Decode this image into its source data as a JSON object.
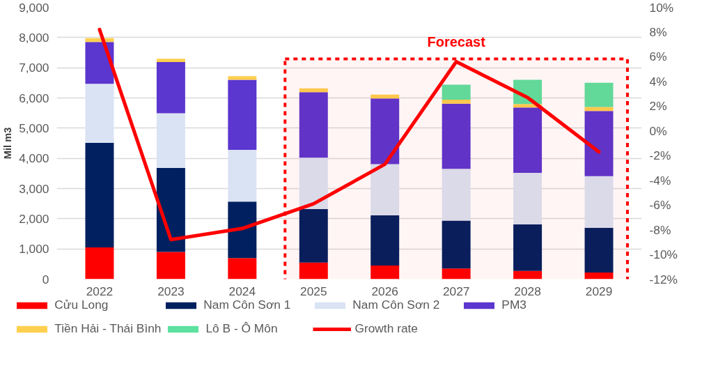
{
  "chart_data": {
    "type": "bar",
    "stacked": true,
    "ylabel": "Mil m3",
    "categories": [
      "2022",
      "2023",
      "2024",
      "2025",
      "2026",
      "2027",
      "2028",
      "2029"
    ],
    "series": [
      {
        "name": "Cửu Long",
        "color": "#ff0000",
        "values": [
          1050,
          900,
          700,
          550,
          450,
          350,
          270,
          220
        ]
      },
      {
        "name": "Nam Côn Sơn 1",
        "color": "#002060",
        "values": [
          3460,
          2780,
          1870,
          1770,
          1660,
          1590,
          1540,
          1480
        ]
      },
      {
        "name": "Nam Côn Sơn 2",
        "color": "#dae3f3",
        "values": [
          1960,
          1810,
          1710,
          1700,
          1700,
          1710,
          1710,
          1710
        ]
      },
      {
        "name": "PM3",
        "color": "#5b36cf",
        "values": [
          1380,
          1700,
          2320,
          2170,
          2170,
          2160,
          2160,
          2160
        ]
      },
      {
        "name": "Tiền Hải - Thái Bình",
        "color": "#ffd04f",
        "values": [
          130,
          110,
          120,
          130,
          130,
          130,
          120,
          130
        ]
      },
      {
        "name": "Lô B - Ô Môn",
        "color": "#5ce1a0",
        "values": [
          null,
          null,
          null,
          null,
          null,
          500,
          800,
          800
        ]
      },
      {
        "name": "Growth rate",
        "type": "line",
        "axis": "y2",
        "color": "#ff0000",
        "values": [
          8.2,
          -8.8,
          -7.9,
          -5.9,
          -2.7,
          5.6,
          2.7,
          -1.7
        ]
      }
    ],
    "ylim": [
      0,
      9000
    ],
    "yticks": [
      0,
      {
        "value": 1000,
        "label": "1,000"
      },
      {
        "value": 2000,
        "label": "2,000"
      },
      {
        "value": 3000,
        "label": "3,000"
      },
      {
        "value": 4000,
        "label": "4,000"
      },
      {
        "value": 5000,
        "label": "5,000"
      },
      {
        "value": 6000,
        "label": "6,000"
      },
      {
        "value": 7000,
        "label": "7,000"
      },
      {
        "value": 8000,
        "label": "8,000"
      },
      {
        "value": 9000,
        "label": "9,000"
      }
    ],
    "y2lim": [
      -12,
      10
    ],
    "y2ticks": [
      {
        "value": -12,
        "label": "-12%"
      },
      {
        "value": -10,
        "label": "-10%"
      },
      {
        "value": -8,
        "label": "-8%"
      },
      {
        "value": -6,
        "label": "-6%"
      },
      {
        "value": -4,
        "label": "-4%"
      },
      {
        "value": -2,
        "label": "-2%"
      },
      {
        "value": 0,
        "label": "0%"
      },
      {
        "value": 2,
        "label": "2%"
      },
      {
        "value": 4,
        "label": "4%"
      },
      {
        "value": 6,
        "label": "6%"
      },
      {
        "value": 8,
        "label": "8%"
      },
      {
        "value": 10,
        "label": "10%"
      }
    ],
    "bands": [
      {
        "axis": "x",
        "from": "2025",
        "to": "2029",
        "label": "Forecast",
        "color": "#ff0000"
      }
    ],
    "grid": "y",
    "legend": "bottom",
    "line_style": "solid"
  }
}
